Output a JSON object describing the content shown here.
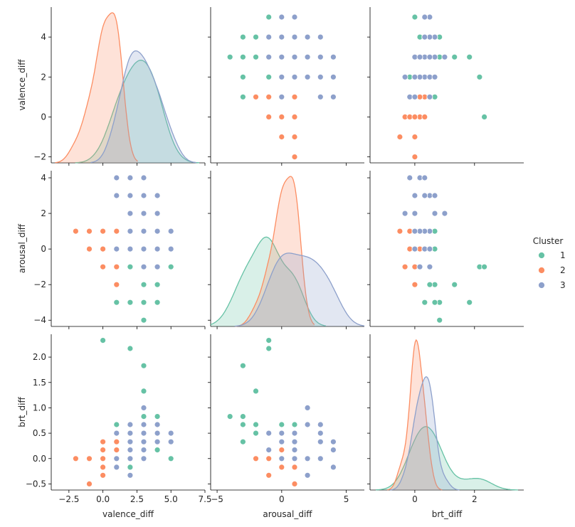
{
  "chart_data": {
    "type": "scatter",
    "kind": "pairplot",
    "variables": [
      "valence_diff",
      "arousal_diff",
      "brt_diff"
    ],
    "axis_labels": {
      "valence_diff": "valence_diff",
      "arousal_diff": "arousal_diff",
      "brt_diff": "brt_diff"
    },
    "ranges": {
      "valence_diff": [
        -3.8,
        7.5
      ],
      "arousal_diff": [
        -5.5,
        6.4
      ],
      "brt_diff": [
        -1.5,
        3.65
      ]
    },
    "ticks": {
      "valence_diff": [
        -2.5,
        0.0,
        2.5,
        5.0,
        7.5
      ],
      "arousal_diff": [
        -5,
        0,
        5
      ],
      "brt_diff": [
        0,
        2
      ]
    },
    "row_ranges": {
      "valence_diff": [
        -2.3,
        5.5
      ],
      "arousal_diff": [
        -4.35,
        4.4
      ],
      "brt_diff": [
        -0.62,
        2.45
      ]
    },
    "row_ticks": {
      "valence_diff": [
        -2,
        0,
        2,
        4
      ],
      "arousal_diff": [
        -4,
        -2,
        0,
        2,
        4
      ],
      "brt_diff": [
        -0.5,
        0.0,
        0.5,
        1.0,
        1.5,
        2.0
      ]
    },
    "tick_labels": {
      "valence_diff_x": [
        "−2.5",
        "0.0",
        "2.5",
        "5.0",
        "7.5"
      ],
      "arousal_diff_x": [
        "−5",
        "0",
        "5"
      ],
      "brt_diff_x": [
        "0",
        "2"
      ],
      "valence_diff_y": [
        "−2",
        "0",
        "2",
        "4"
      ],
      "arousal_diff_y": [
        "−4",
        "−2",
        "0",
        "2",
        "4"
      ],
      "brt_diff_y": [
        "−0.5",
        "0.0",
        "0.5",
        "1.0",
        "1.5",
        "2.0"
      ]
    },
    "legend": {
      "title": "Cluster",
      "placement": "right",
      "entries": [
        "1",
        "2",
        "3"
      ]
    },
    "series": [
      {
        "name": "1",
        "color": "#66c2a5",
        "points": [
          [
            5,
            -1,
            0.0
          ],
          [
            4,
            -3,
            0.83
          ],
          [
            4,
            -2,
            0.67
          ],
          [
            4,
            -1,
            0.17
          ],
          [
            4,
            1,
            0.33
          ],
          [
            3,
            -1,
            0.5
          ],
          [
            3,
            0,
            0.67
          ],
          [
            3,
            1,
            0.17
          ],
          [
            3,
            -4,
            0.83
          ],
          [
            3,
            -2,
            1.33
          ],
          [
            3,
            -3,
            1.83
          ],
          [
            2,
            -3,
            0.33
          ],
          [
            2,
            -1,
            0.5
          ],
          [
            2,
            1,
            0.33
          ],
          [
            2,
            -1,
            2.17
          ],
          [
            2,
            0,
            -0.17
          ],
          [
            1,
            -3,
            0.67
          ],
          [
            1,
            -1,
            0.17
          ],
          [
            1,
            1,
            -0.17
          ],
          [
            0,
            -1,
            2.33
          ],
          [
            1,
            -2,
            0.0
          ],
          [
            4,
            -2,
            0.5
          ],
          [
            2,
            -1,
            0.0
          ],
          [
            3,
            1,
            0.67
          ]
        ]
      },
      {
        "name": "2",
        "color": "#fc8d62",
        "points": [
          [
            1,
            0,
            0.33
          ],
          [
            1,
            1,
            0.17
          ],
          [
            1,
            0,
            0.0
          ],
          [
            1,
            -1,
            0.17
          ],
          [
            0,
            1,
            0.33
          ],
          [
            0,
            0,
            0.17
          ],
          [
            0,
            -1,
            0.0
          ],
          [
            0,
            -1,
            -0.33
          ],
          [
            -1,
            1,
            -0.5
          ],
          [
            -1,
            0,
            0.0
          ],
          [
            -2,
            1,
            0.0
          ],
          [
            1,
            1,
            -0.17
          ],
          [
            1,
            -2,
            0.0
          ],
          [
            0,
            0,
            -0.17
          ],
          [
            0,
            1,
            0.0
          ],
          [
            1,
            0,
            0.5
          ],
          [
            -1,
            1,
            0.0
          ],
          [
            0,
            0,
            0.33
          ],
          [
            1,
            1,
            0.17
          ]
        ]
      },
      {
        "name": "3",
        "color": "#8da0cb",
        "points": [
          [
            1,
            4,
            -0.17
          ],
          [
            2,
            4,
            0.17
          ],
          [
            3,
            4,
            0.33
          ],
          [
            4,
            3,
            0.5
          ],
          [
            5,
            1,
            0.5
          ],
          [
            4,
            2,
            0.67
          ],
          [
            4,
            1,
            0.33
          ],
          [
            3,
            3,
            0.67
          ],
          [
            3,
            2,
            1.0
          ],
          [
            3,
            0,
            0.5
          ],
          [
            3,
            -1,
            0.17
          ],
          [
            2,
            3,
            0.33
          ],
          [
            2,
            2,
            0.0
          ],
          [
            2,
            2,
            -0.33
          ],
          [
            2,
            0,
            0.5
          ],
          [
            2,
            1,
            0.17
          ],
          [
            3,
            1,
            0.0
          ],
          [
            2,
            2,
            0.67
          ],
          [
            4,
            -1,
            0.5
          ],
          [
            5,
            0,
            0.33
          ],
          [
            2,
            0,
            0.0
          ],
          [
            1,
            3,
            0.0
          ],
          [
            4,
            0,
            0.33
          ],
          [
            3,
            -1,
            0.17
          ],
          [
            1,
            0,
            0.5
          ]
        ]
      }
    ]
  }
}
